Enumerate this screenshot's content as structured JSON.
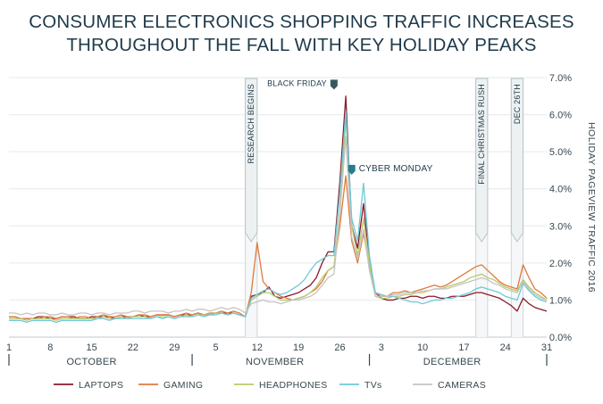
{
  "title_line1": "CONSUMER ELECTRONICS SHOPPING TRAFFIC INCREASES",
  "title_line2": "THROUGHOUT THE FALL WITH KEY HOLIDAY PEAKS",
  "chart_data": {
    "type": "line",
    "title": "CONSUMER ELECTRONICS SHOPPING TRAFFIC INCREASES THROUGHOUT THE FALL WITH KEY HOLIDAY PEAKS",
    "ylabel": "HOLIDAY PAGEVIEW TRAFFIC 2016",
    "ylim": [
      0,
      7
    ],
    "yticks": [
      "0.0%",
      "1.0%",
      "2.0%",
      "3.0%",
      "4.0%",
      "5.0%",
      "6.0%",
      "7.0%"
    ],
    "grid": true,
    "legend_position": "bottom",
    "x_start": "2016-10-01",
    "x_end": "2016-12-31",
    "xtick_labels": [
      "1",
      "8",
      "15",
      "22",
      "29",
      "5",
      "12",
      "19",
      "26",
      "3",
      "10",
      "17",
      "24",
      "31"
    ],
    "xtick_dates": [
      "2016-10-01",
      "2016-10-08",
      "2016-10-15",
      "2016-10-22",
      "2016-10-29",
      "2016-11-05",
      "2016-11-12",
      "2016-11-19",
      "2016-11-26",
      "2016-12-03",
      "2016-12-10",
      "2016-12-17",
      "2016-12-24",
      "2016-12-31"
    ],
    "months": [
      {
        "label": "OCTOBER",
        "center": "2016-10-15"
      },
      {
        "label": "NOVEMBER",
        "center": "2016-11-15"
      },
      {
        "label": "DECEMBER",
        "center": "2016-12-15"
      }
    ],
    "month_boundaries": [
      "2016-10-01",
      "2016-11-01",
      "2016-12-01",
      "2016-12-31"
    ],
    "bands": [
      {
        "label": "RESEARCH BEGINS",
        "start": "2016-11-10",
        "end": "2016-11-12"
      },
      {
        "label": "FINAL CHRISTMAS RUSH",
        "start": "2016-12-19",
        "end": "2016-12-21"
      },
      {
        "label": "DEC 26TH",
        "start": "2016-12-25",
        "end": "2016-12-27"
      }
    ],
    "markers": [
      {
        "label": "BLACK FRIDAY",
        "date": "2016-11-25",
        "value": 6.8,
        "color": "#37595e"
      },
      {
        "label": "CYBER MONDAY",
        "date": "2016-11-28",
        "value": 4.5,
        "color": "#2a7a8c"
      }
    ],
    "series": [
      {
        "name": "LAPTOPS",
        "color": "#8b1a2b",
        "values": [
          0.55,
          0.55,
          0.5,
          0.5,
          0.5,
          0.55,
          0.55,
          0.5,
          0.5,
          0.55,
          0.55,
          0.55,
          0.5,
          0.5,
          0.55,
          0.55,
          0.55,
          0.55,
          0.5,
          0.55,
          0.55,
          0.55,
          0.6,
          0.55,
          0.55,
          0.6,
          0.6,
          0.6,
          0.55,
          0.6,
          0.6,
          0.6,
          0.65,
          0.6,
          0.6,
          0.65,
          0.65,
          0.65,
          0.65,
          0.6,
          0.55,
          1.1,
          1.15,
          1.2,
          1.35,
          1.1,
          1.05,
          1.1,
          1.15,
          1.2,
          1.3,
          1.4,
          1.6,
          2.0,
          2.3,
          2.3,
          4.2,
          6.5,
          3.0,
          2.4,
          3.6,
          2.0,
          1.2,
          1.05,
          1.0,
          1.0,
          1.05,
          1.05,
          1.1,
          1.1,
          1.05,
          1.1,
          1.1,
          1.05,
          1.05,
          1.1,
          1.1,
          1.1,
          1.15,
          1.2,
          1.2,
          1.15,
          1.1,
          1.05,
          0.95,
          0.85,
          0.7,
          1.05,
          0.9,
          0.8,
          0.75,
          0.7
        ]
      },
      {
        "name": "GAMING",
        "color": "#e07a3c",
        "values": [
          0.55,
          0.55,
          0.5,
          0.5,
          0.5,
          0.5,
          0.55,
          0.55,
          0.5,
          0.55,
          0.55,
          0.5,
          0.55,
          0.55,
          0.5,
          0.55,
          0.6,
          0.55,
          0.55,
          0.6,
          0.55,
          0.55,
          0.6,
          0.6,
          0.55,
          0.6,
          0.6,
          0.6,
          0.55,
          0.6,
          0.65,
          0.6,
          0.65,
          0.6,
          0.65,
          0.65,
          0.7,
          0.65,
          0.7,
          0.65,
          0.55,
          1.2,
          2.55,
          1.5,
          1.3,
          1.2,
          1.1,
          1.05,
          1.0,
          1.05,
          1.1,
          1.2,
          1.3,
          1.5,
          1.8,
          1.9,
          3.0,
          4.35,
          2.6,
          2.0,
          2.8,
          1.9,
          1.2,
          1.1,
          1.1,
          1.2,
          1.2,
          1.25,
          1.2,
          1.25,
          1.3,
          1.35,
          1.4,
          1.35,
          1.4,
          1.5,
          1.6,
          1.7,
          1.8,
          1.9,
          1.95,
          1.8,
          1.65,
          1.5,
          1.4,
          1.35,
          1.3,
          1.95,
          1.6,
          1.3,
          1.2,
          1.05
        ]
      },
      {
        "name": "HEADPHONES",
        "color": "#b9c96a",
        "values": [
          0.5,
          0.5,
          0.5,
          0.45,
          0.5,
          0.5,
          0.5,
          0.5,
          0.45,
          0.5,
          0.5,
          0.5,
          0.5,
          0.5,
          0.5,
          0.5,
          0.55,
          0.5,
          0.5,
          0.55,
          0.5,
          0.55,
          0.55,
          0.55,
          0.5,
          0.55,
          0.55,
          0.55,
          0.5,
          0.55,
          0.6,
          0.55,
          0.6,
          0.6,
          0.6,
          0.65,
          0.65,
          0.6,
          0.65,
          0.6,
          0.55,
          1.0,
          1.1,
          1.2,
          1.2,
          1.1,
          1.0,
          1.0,
          1.0,
          1.05,
          1.1,
          1.2,
          1.35,
          1.6,
          1.8,
          1.9,
          3.4,
          5.9,
          3.0,
          2.2,
          3.2,
          2.0,
          1.1,
          1.05,
          1.05,
          1.1,
          1.1,
          1.15,
          1.15,
          1.2,
          1.2,
          1.25,
          1.3,
          1.3,
          1.35,
          1.4,
          1.45,
          1.5,
          1.6,
          1.65,
          1.7,
          1.6,
          1.55,
          1.45,
          1.35,
          1.3,
          1.25,
          1.55,
          1.35,
          1.2,
          1.1,
          1.0
        ]
      },
      {
        "name": "TVs",
        "color": "#6cc9d9",
        "values": [
          0.45,
          0.45,
          0.45,
          0.4,
          0.45,
          0.45,
          0.45,
          0.45,
          0.4,
          0.45,
          0.45,
          0.45,
          0.45,
          0.45,
          0.45,
          0.5,
          0.5,
          0.45,
          0.5,
          0.5,
          0.5,
          0.5,
          0.5,
          0.5,
          0.5,
          0.55,
          0.5,
          0.55,
          0.5,
          0.55,
          0.55,
          0.55,
          0.6,
          0.55,
          0.6,
          0.6,
          0.65,
          0.6,
          0.65,
          0.6,
          0.55,
          1.05,
          1.15,
          1.25,
          1.3,
          1.2,
          1.15,
          1.2,
          1.3,
          1.4,
          1.55,
          1.8,
          2.0,
          2.1,
          2.2,
          2.2,
          3.9,
          6.1,
          3.2,
          2.6,
          4.15,
          2.2,
          1.2,
          1.15,
          1.1,
          1.1,
          1.05,
          1.0,
          0.95,
          0.95,
          0.9,
          0.95,
          1.0,
          1.0,
          1.05,
          1.05,
          1.1,
          1.15,
          1.2,
          1.3,
          1.35,
          1.3,
          1.25,
          1.2,
          1.1,
          1.05,
          1.0,
          1.45,
          1.25,
          1.1,
          1.0,
          0.95
        ]
      },
      {
        "name": "CAMERAS",
        "color": "#c4c4c4",
        "values": [
          0.65,
          0.65,
          0.6,
          0.65,
          0.6,
          0.65,
          0.65,
          0.6,
          0.6,
          0.65,
          0.6,
          0.6,
          0.65,
          0.65,
          0.6,
          0.65,
          0.65,
          0.6,
          0.65,
          0.65,
          0.65,
          0.7,
          0.7,
          0.65,
          0.7,
          0.7,
          0.7,
          0.65,
          0.7,
          0.7,
          0.75,
          0.7,
          0.75,
          0.75,
          0.7,
          0.75,
          0.8,
          0.75,
          0.8,
          0.75,
          0.65,
          0.9,
          0.95,
          1.0,
          0.95,
          0.95,
          0.9,
          0.95,
          1.0,
          1.0,
          1.05,
          1.1,
          1.2,
          1.4,
          1.6,
          1.7,
          3.3,
          5.4,
          2.7,
          2.1,
          2.9,
          1.8,
          1.1,
          1.1,
          1.1,
          1.15,
          1.15,
          1.2,
          1.2,
          1.2,
          1.25,
          1.25,
          1.3,
          1.3,
          1.3,
          1.35,
          1.4,
          1.45,
          1.5,
          1.55,
          1.6,
          1.55,
          1.45,
          1.4,
          1.3,
          1.25,
          1.2,
          1.5,
          1.3,
          1.15,
          1.05,
          1.0
        ]
      }
    ]
  },
  "legend": [
    "LAPTOPS",
    "GAMING",
    "HEADPHONES",
    "TVs",
    "CAMERAS"
  ]
}
